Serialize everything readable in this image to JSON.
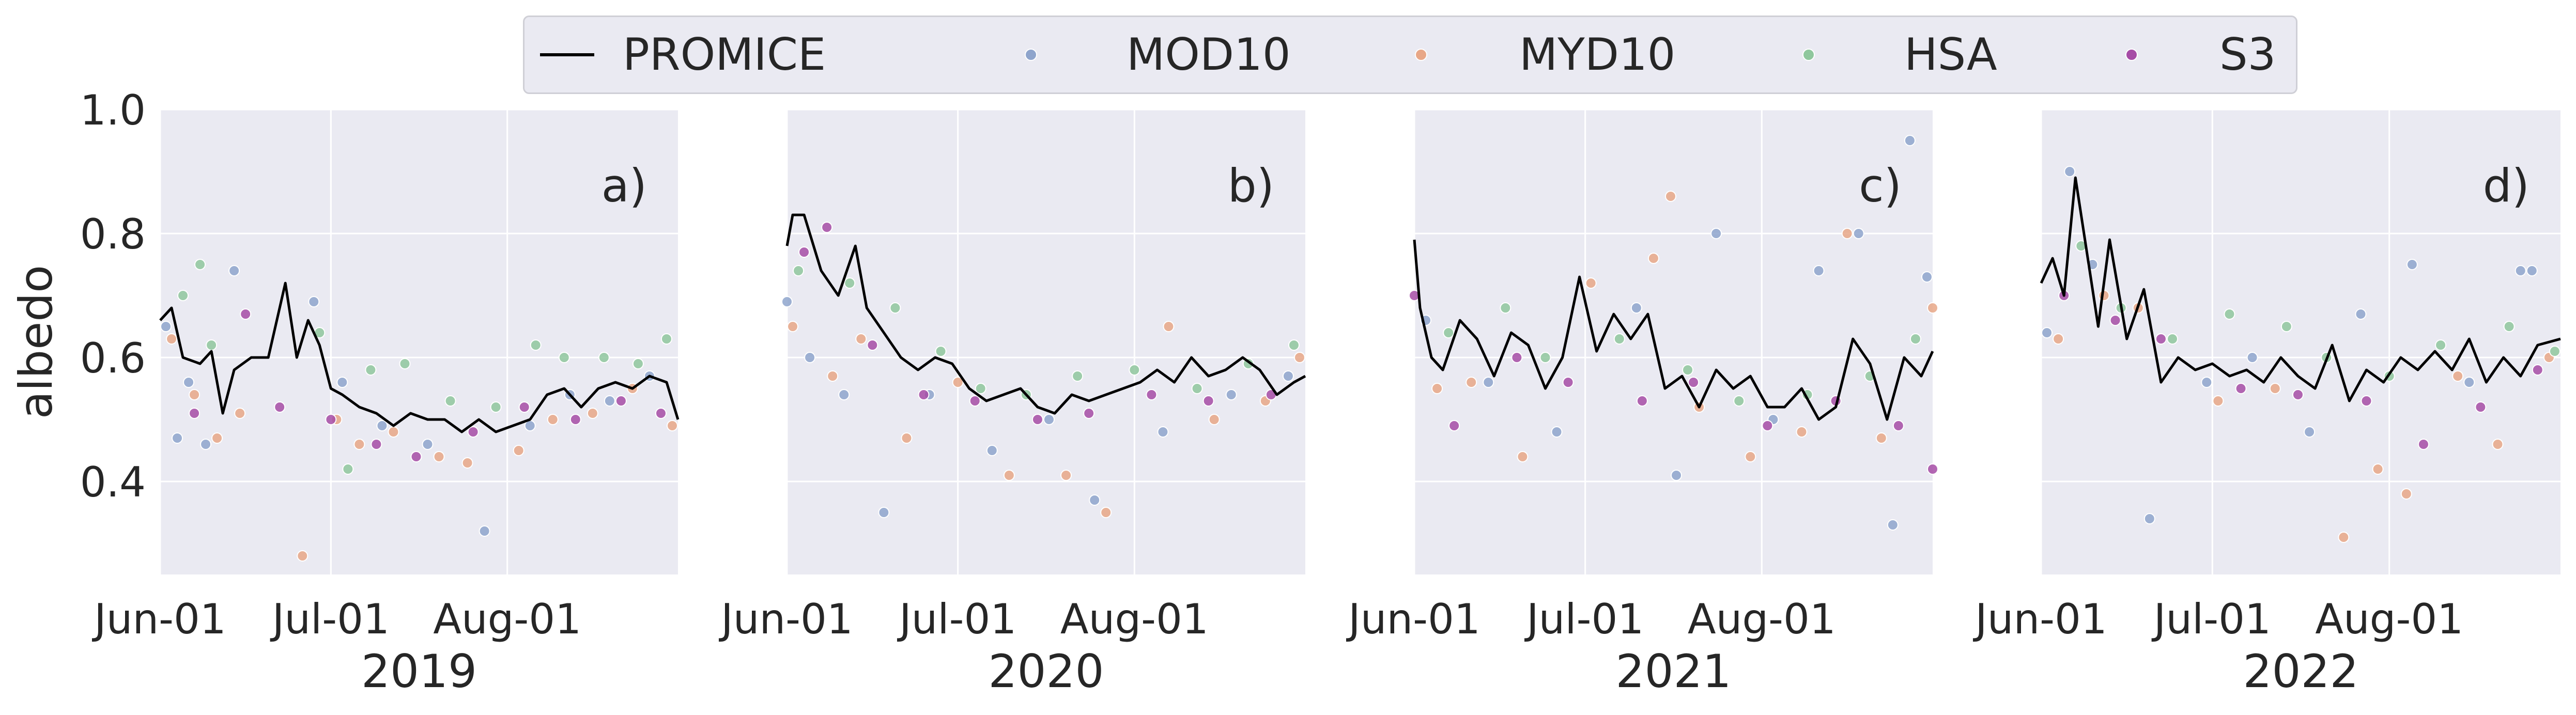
{
  "figure": {
    "ylabel": "albedo",
    "legend": [
      {
        "name": "PROMICE",
        "style": "line",
        "color": "#000000"
      },
      {
        "name": "MOD10",
        "style": "dot",
        "color": "#8ea4cc"
      },
      {
        "name": "MYD10",
        "style": "dot",
        "color": "#e8a787"
      },
      {
        "name": "HSA",
        "style": "dot",
        "color": "#8fc79d"
      },
      {
        "name": "S3",
        "style": "dot",
        "color": "#a64ca6"
      }
    ],
    "yticks": [
      "0.4",
      "0.6",
      "0.8",
      "1.0"
    ],
    "xticks": [
      "Jun-01",
      "Jul-01",
      "Aug-01"
    ]
  },
  "chart_data": [
    {
      "type": "scatter",
      "panel_label": "a)",
      "xlabel": "2019",
      "ylabel": "albedo",
      "ylim": [
        0.25,
        1.0
      ],
      "xlim": [
        "2019-06-01",
        "2019-08-31"
      ],
      "grid": true,
      "series": [
        {
          "name": "PROMICE",
          "type": "line",
          "x": [
            "2019-06-01",
            "2019-06-03",
            "2019-06-05",
            "2019-06-08",
            "2019-06-10",
            "2019-06-12",
            "2019-06-14",
            "2019-06-17",
            "2019-06-20",
            "2019-06-23",
            "2019-06-25",
            "2019-06-27",
            "2019-06-29",
            "2019-07-01",
            "2019-07-03",
            "2019-07-06",
            "2019-07-09",
            "2019-07-12",
            "2019-07-15",
            "2019-07-18",
            "2019-07-21",
            "2019-07-24",
            "2019-07-27",
            "2019-07-30",
            "2019-08-02",
            "2019-08-05",
            "2019-08-08",
            "2019-08-11",
            "2019-08-14",
            "2019-08-17",
            "2019-08-20",
            "2019-08-23",
            "2019-08-26",
            "2019-08-29",
            "2019-08-31"
          ],
          "values": [
            0.66,
            0.68,
            0.6,
            0.59,
            0.61,
            0.51,
            0.58,
            0.6,
            0.6,
            0.72,
            0.6,
            0.66,
            0.62,
            0.55,
            0.54,
            0.52,
            0.51,
            0.49,
            0.51,
            0.5,
            0.5,
            0.48,
            0.5,
            0.48,
            0.49,
            0.5,
            0.54,
            0.55,
            0.52,
            0.55,
            0.56,
            0.55,
            0.57,
            0.56,
            0.5
          ]
        },
        {
          "name": "MOD10",
          "type": "scatter",
          "x": [
            "2019-06-02",
            "2019-06-04",
            "2019-06-06",
            "2019-06-09",
            "2019-06-14",
            "2019-06-28",
            "2019-07-03",
            "2019-07-10",
            "2019-07-18",
            "2019-07-28",
            "2019-08-05",
            "2019-08-12",
            "2019-08-19",
            "2019-08-26"
          ],
          "values": [
            0.65,
            0.47,
            0.56,
            0.46,
            0.74,
            0.69,
            0.56,
            0.49,
            0.46,
            0.32,
            0.49,
            0.54,
            0.53,
            0.57
          ]
        },
        {
          "name": "MYD10",
          "type": "scatter",
          "x": [
            "2019-06-03",
            "2019-06-07",
            "2019-06-11",
            "2019-06-15",
            "2019-06-26",
            "2019-07-02",
            "2019-07-06",
            "2019-07-12",
            "2019-07-20",
            "2019-07-25",
            "2019-08-03",
            "2019-08-09",
            "2019-08-16",
            "2019-08-23",
            "2019-08-30"
          ],
          "values": [
            0.63,
            0.54,
            0.47,
            0.51,
            0.28,
            0.5,
            0.46,
            0.48,
            0.44,
            0.43,
            0.45,
            0.5,
            0.51,
            0.55,
            0.49
          ]
        },
        {
          "name": "HSA",
          "type": "scatter",
          "x": [
            "2019-06-05",
            "2019-06-08",
            "2019-06-10",
            "2019-06-29",
            "2019-07-04",
            "2019-07-08",
            "2019-07-14",
            "2019-07-22",
            "2019-07-30",
            "2019-08-06",
            "2019-08-11",
            "2019-08-18",
            "2019-08-24",
            "2019-08-29"
          ],
          "values": [
            0.7,
            0.75,
            0.62,
            0.64,
            0.42,
            0.58,
            0.59,
            0.53,
            0.52,
            0.62,
            0.6,
            0.6,
            0.59,
            0.63
          ]
        },
        {
          "name": "S3",
          "type": "scatter",
          "x": [
            "2019-06-07",
            "2019-06-16",
            "2019-06-22",
            "2019-07-01",
            "2019-07-09",
            "2019-07-16",
            "2019-07-26",
            "2019-08-04",
            "2019-08-13",
            "2019-08-21",
            "2019-08-28"
          ],
          "values": [
            0.51,
            0.67,
            0.52,
            0.5,
            0.46,
            0.44,
            0.48,
            0.52,
            0.5,
            0.53,
            0.51
          ]
        }
      ]
    },
    {
      "type": "scatter",
      "panel_label": "b)",
      "xlabel": "2020",
      "ylabel": "albedo",
      "ylim": [
        0.25,
        1.0
      ],
      "xlim": [
        "2020-06-01",
        "2020-08-31"
      ],
      "grid": true,
      "series": [
        {
          "name": "PROMICE",
          "type": "line",
          "x": [
            "2020-06-01",
            "2020-06-02",
            "2020-06-04",
            "2020-06-07",
            "2020-06-10",
            "2020-06-13",
            "2020-06-15",
            "2020-06-18",
            "2020-06-21",
            "2020-06-24",
            "2020-06-27",
            "2020-06-30",
            "2020-07-03",
            "2020-07-06",
            "2020-07-09",
            "2020-07-12",
            "2020-07-15",
            "2020-07-18",
            "2020-07-21",
            "2020-07-24",
            "2020-07-27",
            "2020-07-30",
            "2020-08-02",
            "2020-08-05",
            "2020-08-08",
            "2020-08-11",
            "2020-08-14",
            "2020-08-17",
            "2020-08-20",
            "2020-08-23",
            "2020-08-26",
            "2020-08-29",
            "2020-08-31"
          ],
          "values": [
            0.78,
            0.83,
            0.83,
            0.74,
            0.7,
            0.78,
            0.68,
            0.64,
            0.6,
            0.58,
            0.6,
            0.59,
            0.55,
            0.53,
            0.54,
            0.55,
            0.52,
            0.51,
            0.54,
            0.53,
            0.54,
            0.55,
            0.56,
            0.58,
            0.56,
            0.6,
            0.57,
            0.58,
            0.6,
            0.58,
            0.54,
            0.56,
            0.57
          ]
        },
        {
          "name": "MOD10",
          "type": "scatter",
          "x": [
            "2020-06-01",
            "2020-06-05",
            "2020-06-11",
            "2020-06-18",
            "2020-06-26",
            "2020-07-07",
            "2020-07-17",
            "2020-07-25",
            "2020-08-06",
            "2020-08-18",
            "2020-08-28"
          ],
          "values": [
            0.69,
            0.6,
            0.54,
            0.35,
            0.54,
            0.45,
            0.5,
            0.37,
            0.48,
            0.54,
            0.57
          ]
        },
        {
          "name": "MYD10",
          "type": "scatter",
          "x": [
            "2020-06-02",
            "2020-06-09",
            "2020-06-14",
            "2020-06-22",
            "2020-07-01",
            "2020-07-10",
            "2020-07-20",
            "2020-07-27",
            "2020-08-07",
            "2020-08-15",
            "2020-08-24",
            "2020-08-30"
          ],
          "values": [
            0.65,
            0.57,
            0.63,
            0.47,
            0.56,
            0.41,
            0.41,
            0.35,
            0.65,
            0.5,
            0.53,
            0.6
          ]
        },
        {
          "name": "HSA",
          "type": "scatter",
          "x": [
            "2020-06-03",
            "2020-06-12",
            "2020-06-20",
            "2020-06-28",
            "2020-07-05",
            "2020-07-13",
            "2020-07-22",
            "2020-08-01",
            "2020-08-12",
            "2020-08-21",
            "2020-08-29"
          ],
          "values": [
            0.74,
            0.72,
            0.68,
            0.61,
            0.55,
            0.54,
            0.57,
            0.58,
            0.55,
            0.59,
            0.62
          ]
        },
        {
          "name": "S3",
          "type": "scatter",
          "x": [
            "2020-06-04",
            "2020-06-08",
            "2020-06-16",
            "2020-06-25",
            "2020-07-04",
            "2020-07-15",
            "2020-07-24",
            "2020-08-04",
            "2020-08-14",
            "2020-08-25"
          ],
          "values": [
            0.77,
            0.81,
            0.62,
            0.54,
            0.53,
            0.5,
            0.51,
            0.54,
            0.53,
            0.54
          ]
        }
      ]
    },
    {
      "type": "scatter",
      "panel_label": "c)",
      "xlabel": "2021",
      "ylabel": "albedo",
      "ylim": [
        0.25,
        1.0
      ],
      "xlim": [
        "2021-06-01",
        "2021-08-31"
      ],
      "grid": true,
      "series": [
        {
          "name": "PROMICE",
          "type": "line",
          "x": [
            "2021-06-01",
            "2021-06-02",
            "2021-06-04",
            "2021-06-06",
            "2021-06-09",
            "2021-06-12",
            "2021-06-15",
            "2021-06-18",
            "2021-06-21",
            "2021-06-24",
            "2021-06-27",
            "2021-06-30",
            "2021-07-03",
            "2021-07-06",
            "2021-07-09",
            "2021-07-12",
            "2021-07-15",
            "2021-07-18",
            "2021-07-21",
            "2021-07-24",
            "2021-07-27",
            "2021-07-30",
            "2021-08-02",
            "2021-08-05",
            "2021-08-08",
            "2021-08-11",
            "2021-08-14",
            "2021-08-17",
            "2021-08-20",
            "2021-08-23",
            "2021-08-26",
            "2021-08-29",
            "2021-08-31"
          ],
          "values": [
            0.79,
            0.68,
            0.6,
            0.58,
            0.66,
            0.63,
            0.57,
            0.64,
            0.62,
            0.55,
            0.6,
            0.73,
            0.61,
            0.67,
            0.63,
            0.67,
            0.55,
            0.57,
            0.52,
            0.58,
            0.55,
            0.57,
            0.52,
            0.52,
            0.55,
            0.5,
            0.52,
            0.63,
            0.59,
            0.5,
            0.6,
            0.57,
            0.61
          ]
        },
        {
          "name": "MOD10",
          "type": "scatter",
          "x": [
            "2021-06-03",
            "2021-06-14",
            "2021-06-26",
            "2021-07-10",
            "2021-07-17",
            "2021-07-24",
            "2021-08-03",
            "2021-08-11",
            "2021-08-18",
            "2021-08-24",
            "2021-08-27",
            "2021-08-30"
          ],
          "values": [
            0.66,
            0.56,
            0.48,
            0.68,
            0.41,
            0.8,
            0.5,
            0.74,
            0.8,
            0.33,
            0.95,
            0.73
          ]
        },
        {
          "name": "MYD10",
          "type": "scatter",
          "x": [
            "2021-06-05",
            "2021-06-11",
            "2021-06-20",
            "2021-07-02",
            "2021-07-13",
            "2021-07-16",
            "2021-07-21",
            "2021-07-30",
            "2021-08-08",
            "2021-08-16",
            "2021-08-22",
            "2021-08-31"
          ],
          "values": [
            0.55,
            0.56,
            0.44,
            0.72,
            0.76,
            0.86,
            0.52,
            0.44,
            0.48,
            0.8,
            0.47,
            0.68
          ]
        },
        {
          "name": "HSA",
          "type": "scatter",
          "x": [
            "2021-06-07",
            "2021-06-17",
            "2021-06-24",
            "2021-07-07",
            "2021-07-19",
            "2021-07-28",
            "2021-08-09",
            "2021-08-20",
            "2021-08-28"
          ],
          "values": [
            0.64,
            0.68,
            0.6,
            0.63,
            0.58,
            0.53,
            0.54,
            0.57,
            0.63
          ]
        },
        {
          "name": "S3",
          "type": "scatter",
          "x": [
            "2021-06-01",
            "2021-06-08",
            "2021-06-19",
            "2021-06-28",
            "2021-07-11",
            "2021-07-20",
            "2021-08-02",
            "2021-08-14",
            "2021-08-25",
            "2021-08-31"
          ],
          "values": [
            0.7,
            0.49,
            0.6,
            0.56,
            0.53,
            0.56,
            0.49,
            0.53,
            0.49,
            0.42
          ]
        }
      ]
    },
    {
      "type": "scatter",
      "panel_label": "d)",
      "xlabel": "2022",
      "ylabel": "albedo",
      "ylim": [
        0.25,
        1.0
      ],
      "xlim": [
        "2022-06-01",
        "2022-08-31"
      ],
      "grid": true,
      "series": [
        {
          "name": "PROMICE",
          "type": "line",
          "x": [
            "2022-06-01",
            "2022-06-03",
            "2022-06-05",
            "2022-06-07",
            "2022-06-09",
            "2022-06-11",
            "2022-06-13",
            "2022-06-16",
            "2022-06-19",
            "2022-06-22",
            "2022-06-25",
            "2022-06-28",
            "2022-07-01",
            "2022-07-04",
            "2022-07-07",
            "2022-07-10",
            "2022-07-13",
            "2022-07-16",
            "2022-07-19",
            "2022-07-22",
            "2022-07-25",
            "2022-07-28",
            "2022-07-31",
            "2022-08-03",
            "2022-08-06",
            "2022-08-09",
            "2022-08-12",
            "2022-08-15",
            "2022-08-18",
            "2022-08-21",
            "2022-08-24",
            "2022-08-27",
            "2022-08-31"
          ],
          "values": [
            0.72,
            0.76,
            0.7,
            0.89,
            0.77,
            0.65,
            0.79,
            0.63,
            0.71,
            0.56,
            0.6,
            0.58,
            0.59,
            0.57,
            0.58,
            0.56,
            0.6,
            0.57,
            0.55,
            0.62,
            0.53,
            0.58,
            0.56,
            0.6,
            0.58,
            0.61,
            0.58,
            0.63,
            0.56,
            0.6,
            0.57,
            0.62,
            0.63
          ]
        },
        {
          "name": "MOD10",
          "type": "scatter",
          "x": [
            "2022-06-02",
            "2022-06-06",
            "2022-06-10",
            "2022-06-20",
            "2022-06-30",
            "2022-07-08",
            "2022-07-18",
            "2022-07-27",
            "2022-08-05",
            "2022-08-15",
            "2022-08-24",
            "2022-08-26"
          ],
          "values": [
            0.64,
            0.9,
            0.75,
            0.34,
            0.56,
            0.6,
            0.48,
            0.67,
            0.75,
            0.56,
            0.74,
            0.74
          ]
        },
        {
          "name": "MYD10",
          "type": "scatter",
          "x": [
            "2022-06-04",
            "2022-06-12",
            "2022-06-18",
            "2022-07-02",
            "2022-07-12",
            "2022-07-24",
            "2022-07-30",
            "2022-08-04",
            "2022-08-13",
            "2022-08-20",
            "2022-08-29"
          ],
          "values": [
            0.63,
            0.7,
            0.68,
            0.53,
            0.55,
            0.31,
            0.42,
            0.38,
            0.57,
            0.46,
            0.6
          ]
        },
        {
          "name": "HSA",
          "type": "scatter",
          "x": [
            "2022-06-08",
            "2022-06-15",
            "2022-06-24",
            "2022-07-04",
            "2022-07-14",
            "2022-07-21",
            "2022-08-01",
            "2022-08-10",
            "2022-08-22",
            "2022-08-30"
          ],
          "values": [
            0.78,
            0.68,
            0.63,
            0.67,
            0.65,
            0.6,
            0.57,
            0.62,
            0.65,
            0.61
          ]
        },
        {
          "name": "S3",
          "type": "scatter",
          "x": [
            "2022-06-05",
            "2022-06-14",
            "2022-06-22",
            "2022-07-06",
            "2022-07-16",
            "2022-07-28",
            "2022-08-07",
            "2022-08-17",
            "2022-08-27"
          ],
          "values": [
            0.7,
            0.66,
            0.63,
            0.55,
            0.54,
            0.53,
            0.46,
            0.52,
            0.58
          ]
        }
      ]
    }
  ]
}
